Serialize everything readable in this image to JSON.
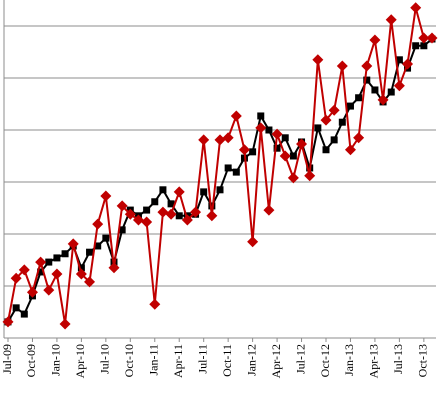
{
  "chart_data": {
    "type": "line",
    "categories": [
      "Jul-09",
      null,
      null,
      "Oct-09",
      null,
      null,
      "Jan-10",
      null,
      null,
      "Apr-10",
      null,
      null,
      "Jul-10",
      null,
      null,
      "Oct-10",
      null,
      null,
      "Jan-11",
      null,
      null,
      "Apr-11",
      null,
      null,
      "Jul-11",
      null,
      null,
      "Oct-11",
      null,
      null,
      "Jan-12",
      null,
      null,
      "Apr-12",
      null,
      null,
      "Jul-12",
      null,
      null,
      "Oct-12",
      null,
      null,
      "Jan-13",
      null,
      null,
      "Apr-13",
      null,
      null,
      "Jul-13",
      null,
      null,
      "Oct-13",
      null
    ],
    "series": [
      {
        "color": "#000000",
        "marker": "square",
        "values": [
          0.31,
          0.58,
          0.46,
          0.81,
          1.27,
          1.46,
          1.54,
          1.62,
          1.77,
          1.35,
          1.65,
          1.77,
          1.92,
          1.46,
          2.08,
          2.46,
          2.35,
          2.46,
          2.62,
          2.85,
          2.58,
          2.35,
          2.35,
          2.38,
          2.81,
          2.54,
          2.85,
          3.27,
          3.19,
          3.46,
          3.58,
          4.27,
          4.0,
          3.65,
          3.85,
          3.5,
          3.77,
          3.27,
          4.04,
          3.62,
          3.81,
          4.15,
          4.46,
          4.62,
          4.96,
          4.77,
          4.54,
          4.73,
          5.35,
          5.19,
          5.62,
          5.62,
          5.75
        ]
      },
      {
        "color": "#c00000",
        "marker": "diamond",
        "values": [
          0.31,
          1.15,
          1.31,
          0.88,
          1.46,
          0.92,
          1.23,
          0.27,
          1.81,
          1.23,
          1.08,
          2.19,
          2.73,
          1.35,
          2.54,
          2.38,
          2.27,
          2.23,
          0.65,
          2.42,
          2.38,
          2.81,
          2.27,
          2.42,
          3.81,
          2.35,
          3.81,
          3.85,
          4.27,
          3.62,
          1.85,
          4.04,
          2.46,
          3.92,
          3.5,
          3.08,
          3.73,
          3.12,
          5.35,
          4.19,
          4.38,
          5.23,
          3.62,
          3.85,
          5.23,
          5.73,
          4.58,
          6.12,
          4.85,
          5.27,
          6.35,
          5.77,
          5.77
        ]
      }
    ],
    "ylim": [
      0,
      6.5
    ],
    "yticks": [
      1,
      2,
      3,
      4,
      5,
      6
    ],
    "grid": true
  }
}
